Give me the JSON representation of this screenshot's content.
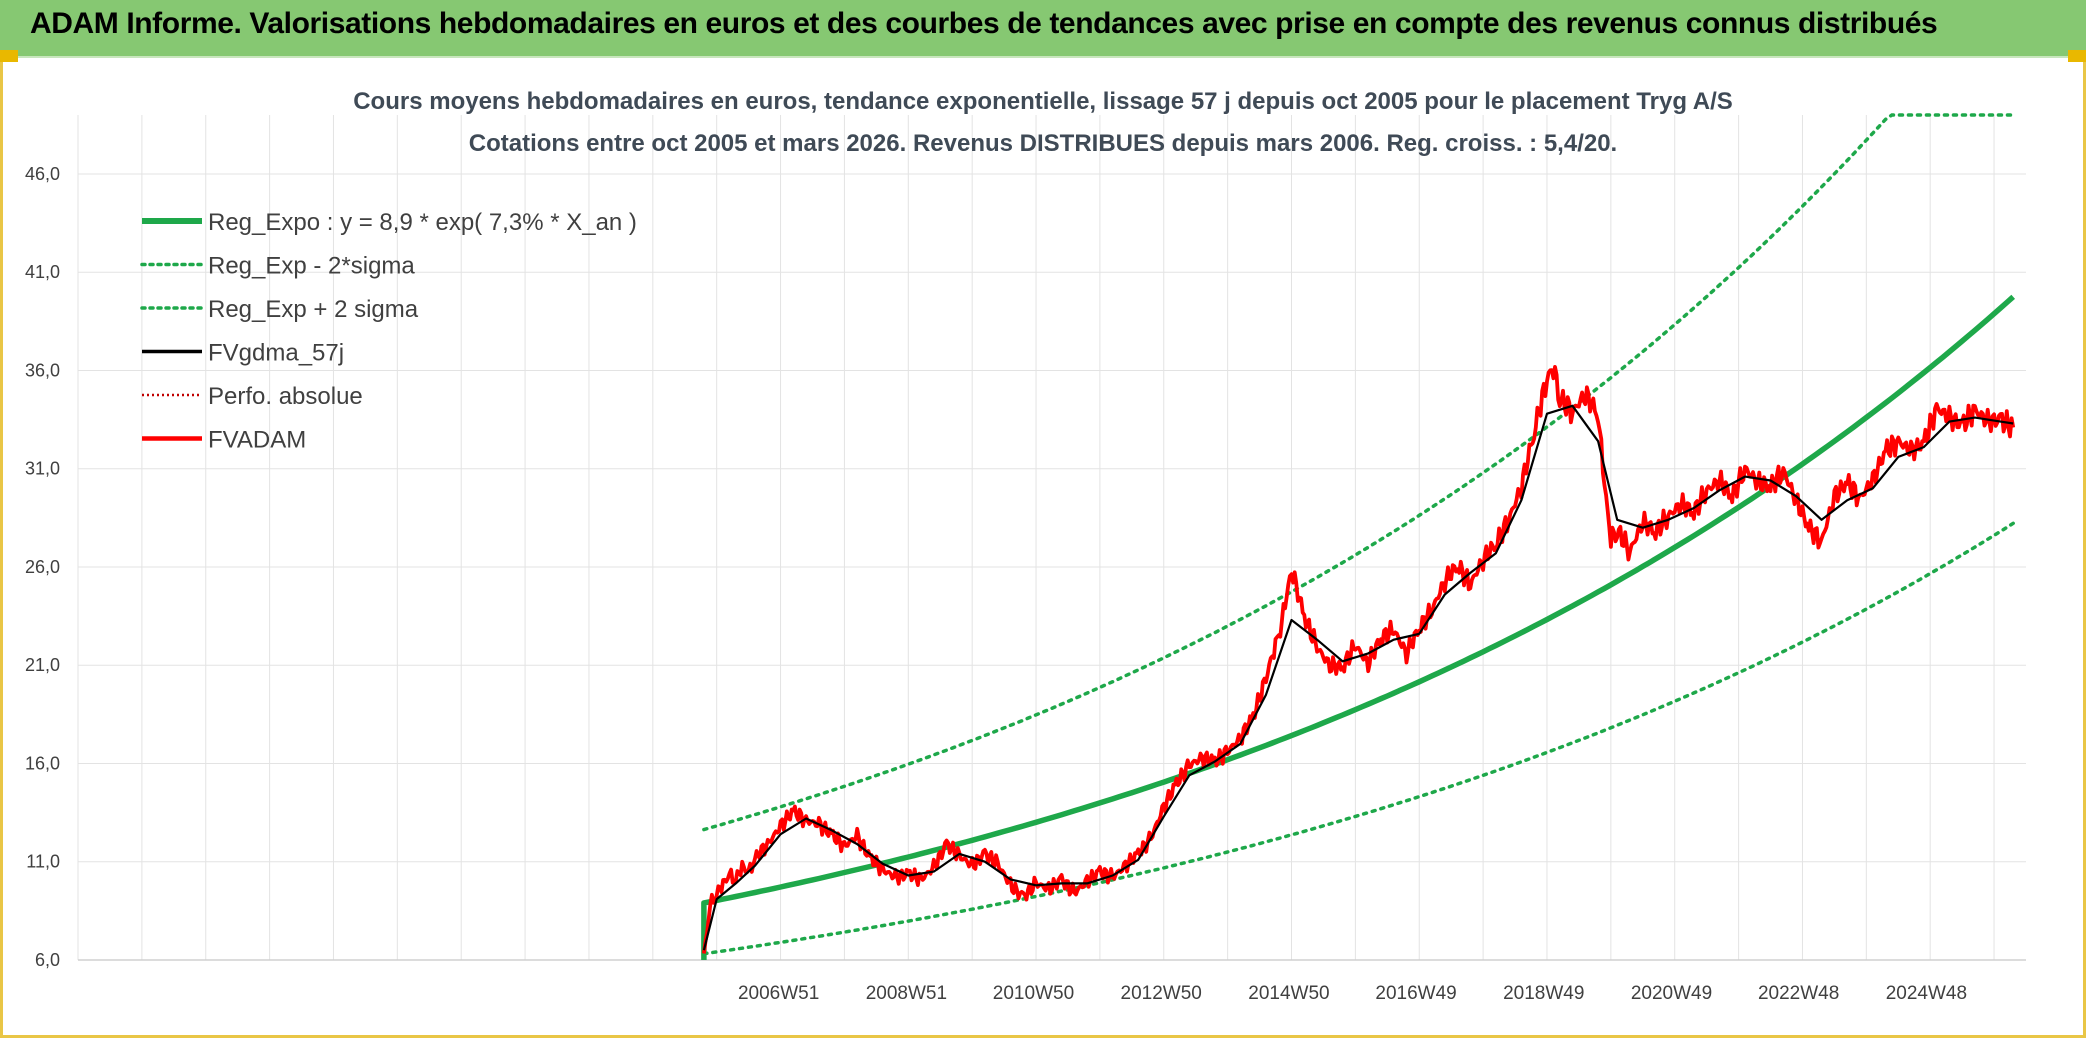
{
  "header": {
    "title": "ADAM Informe. Valorisations hebdomadaires en euros et des courbes de tendances avec prise en compte des revenus connus distribués"
  },
  "colors": {
    "header_bg": "#86c872",
    "frame": "#e9c646",
    "reg_expo": "#1ea84a",
    "sigma": "#1ea84a",
    "fvgdma": "#000000",
    "perfo": "#c00000",
    "fvadam": "#ff0000",
    "grid": "#e3e3e3"
  },
  "chart_data": {
    "type": "line",
    "title_line1": "Cours moyens hebdomadaires en euros, tendance exponentielle, lissage 57 j depuis oct 2005 pour le placement Tryg A/S",
    "title_line2": "Cotations entre oct 2005 et mars 2026. Revenus DISTRIBUES depuis mars 2006. Reg. croiss. : 5,4/20.",
    "ylim": [
      6.0,
      49.0
    ],
    "y_ticks": [
      "6,0",
      "11,0",
      "16,0",
      "21,0",
      "26,0",
      "31,0",
      "36,0",
      "41,0",
      "46,0"
    ],
    "y_tick_values": [
      6,
      11,
      16,
      21,
      26,
      31,
      36,
      41,
      46
    ],
    "xlim": [
      1996.0,
      2026.5
    ],
    "x_ticks": [
      "2006W51",
      "2008W51",
      "2010W50",
      "2012W50",
      "2014W50",
      "2016W49",
      "2018W49",
      "2020W49",
      "2022W48",
      "2024W48"
    ],
    "x_tick_values": [
      2006.97,
      2008.97,
      2010.96,
      2012.96,
      2014.96,
      2016.95,
      2018.95,
      2020.95,
      2022.94,
      2024.94
    ],
    "legend": [
      {
        "key": "reg_expo",
        "label": "Reg_Expo : y = 8,9 * exp( 7,3% *  X_an )",
        "style": "solid-thick"
      },
      {
        "key": "reg_minus",
        "label": "Reg_Exp - 2*sigma",
        "style": "dotted"
      },
      {
        "key": "reg_plus",
        "label": "Reg_Exp + 2 sigma",
        "style": "dotted"
      },
      {
        "key": "fvgdma",
        "label": "FVgdma_57j",
        "style": "solid-thin"
      },
      {
        "key": "perfo",
        "label": "Perfo. absolue",
        "style": "dotted-thin"
      },
      {
        "key": "fvadam",
        "label": "FVADAM",
        "style": "solid-red"
      }
    ],
    "regression": {
      "a": 8.9,
      "b": 0.073,
      "x0": 2005.8,
      "x_end": 2026.3,
      "sigma_plus_factor": 1.42,
      "sigma_minus_factor": 0.71,
      "cap": 49.0
    },
    "series": [
      {
        "name": "FVADAM",
        "x": [
          2005.8,
          2005.9,
          2006.0,
          2006.1,
          2006.2,
          2006.3,
          2006.4,
          2006.5,
          2006.6,
          2006.8,
          2007.0,
          2007.2,
          2007.4,
          2007.6,
          2007.8,
          2008.0,
          2008.2,
          2008.4,
          2008.6,
          2008.8,
          2009.0,
          2009.2,
          2009.4,
          2009.6,
          2009.8,
          2010.0,
          2010.2,
          2010.4,
          2010.6,
          2010.8,
          2011.0,
          2011.2,
          2011.4,
          2011.6,
          2011.8,
          2012.0,
          2012.2,
          2012.4,
          2012.6,
          2012.8,
          2013.0,
          2013.2,
          2013.4,
          2013.6,
          2013.8,
          2014.0,
          2014.2,
          2014.4,
          2014.6,
          2014.7,
          2014.8,
          2014.9,
          2015.0,
          2015.2,
          2015.4,
          2015.6,
          2015.8,
          2016.0,
          2016.2,
          2016.4,
          2016.6,
          2016.8,
          2017.0,
          2017.2,
          2017.4,
          2017.6,
          2017.8,
          2018.0,
          2018.2,
          2018.4,
          2018.6,
          2018.8,
          2019.0,
          2019.1,
          2019.2,
          2019.4,
          2019.6,
          2019.8,
          2019.9,
          2020.0,
          2020.1,
          2020.3,
          2020.5,
          2020.7,
          2020.9,
          2021.1,
          2021.3,
          2021.5,
          2021.7,
          2021.9,
          2022.1,
          2022.3,
          2022.5,
          2022.7,
          2022.9,
          2023.1,
          2023.3,
          2023.5,
          2023.7,
          2023.9,
          2024.1,
          2024.3,
          2024.5,
          2024.7,
          2024.9,
          2025.1,
          2025.3,
          2025.5,
          2025.7,
          2025.9,
          2026.1,
          2026.3
        ],
        "y": [
          6.2,
          8.8,
          9.4,
          9.9,
          10.3,
          10.1,
          10.8,
          10.4,
          11.2,
          11.9,
          12.8,
          13.6,
          13.1,
          12.9,
          12.4,
          11.8,
          12.3,
          11.2,
          10.6,
          10.2,
          10.4,
          10.1,
          10.7,
          11.9,
          11.3,
          10.8,
          11.4,
          10.9,
          9.8,
          9.2,
          9.9,
          9.6,
          10.1,
          9.4,
          10.0,
          10.5,
          10.2,
          10.8,
          11.4,
          12.2,
          13.8,
          15.0,
          15.9,
          16.3,
          16.1,
          16.6,
          17.3,
          18.4,
          20.3,
          21.6,
          22.4,
          24.1,
          25.9,
          23.5,
          21.9,
          21.0,
          20.9,
          22.0,
          21.1,
          22.4,
          22.8,
          21.6,
          22.9,
          23.8,
          25.3,
          26.1,
          25.1,
          26.4,
          27.2,
          28.4,
          30.1,
          32.9,
          35.6,
          36.2,
          34.6,
          33.9,
          34.8,
          33.8,
          30.2,
          27.4,
          27.9,
          26.8,
          28.3,
          27.8,
          28.6,
          29.2,
          28.8,
          29.9,
          30.4,
          29.6,
          31.0,
          30.3,
          30.1,
          30.9,
          29.4,
          28.0,
          27.3,
          29.6,
          30.3,
          29.5,
          30.4,
          31.9,
          32.4,
          31.9,
          32.3,
          34.1,
          33.6,
          33.2,
          34.0,
          33.4,
          33.5,
          33.1
        ]
      },
      {
        "name": "FVgdma_57j",
        "x": [
          2005.8,
          2006.0,
          2006.3,
          2006.6,
          2007.0,
          2007.4,
          2007.8,
          2008.2,
          2008.6,
          2009.0,
          2009.4,
          2009.8,
          2010.2,
          2010.6,
          2011.0,
          2011.4,
          2011.8,
          2012.2,
          2012.6,
          2013.0,
          2013.4,
          2013.8,
          2014.2,
          2014.6,
          2015.0,
          2015.4,
          2015.8,
          2016.2,
          2016.6,
          2017.0,
          2017.4,
          2017.8,
          2018.2,
          2018.6,
          2019.0,
          2019.4,
          2019.8,
          2020.1,
          2020.5,
          2020.9,
          2021.3,
          2021.7,
          2022.1,
          2022.5,
          2022.9,
          2023.3,
          2023.7,
          2024.1,
          2024.5,
          2024.9,
          2025.3,
          2025.7,
          2026.1,
          2026.3
        ],
        "y": [
          6.5,
          9.1,
          9.9,
          10.8,
          12.4,
          13.2,
          12.6,
          11.9,
          10.9,
          10.3,
          10.5,
          11.4,
          11.0,
          10.1,
          9.8,
          9.9,
          9.9,
          10.3,
          11.1,
          13.3,
          15.4,
          16.1,
          17.0,
          19.5,
          23.3,
          22.3,
          21.2,
          21.6,
          22.3,
          22.6,
          24.6,
          25.7,
          26.7,
          29.4,
          33.8,
          34.2,
          32.4,
          28.4,
          28.0,
          28.4,
          29.0,
          29.9,
          30.6,
          30.4,
          29.6,
          28.4,
          29.4,
          30.0,
          31.6,
          32.1,
          33.4,
          33.6,
          33.4,
          33.3
        ]
      }
    ]
  }
}
